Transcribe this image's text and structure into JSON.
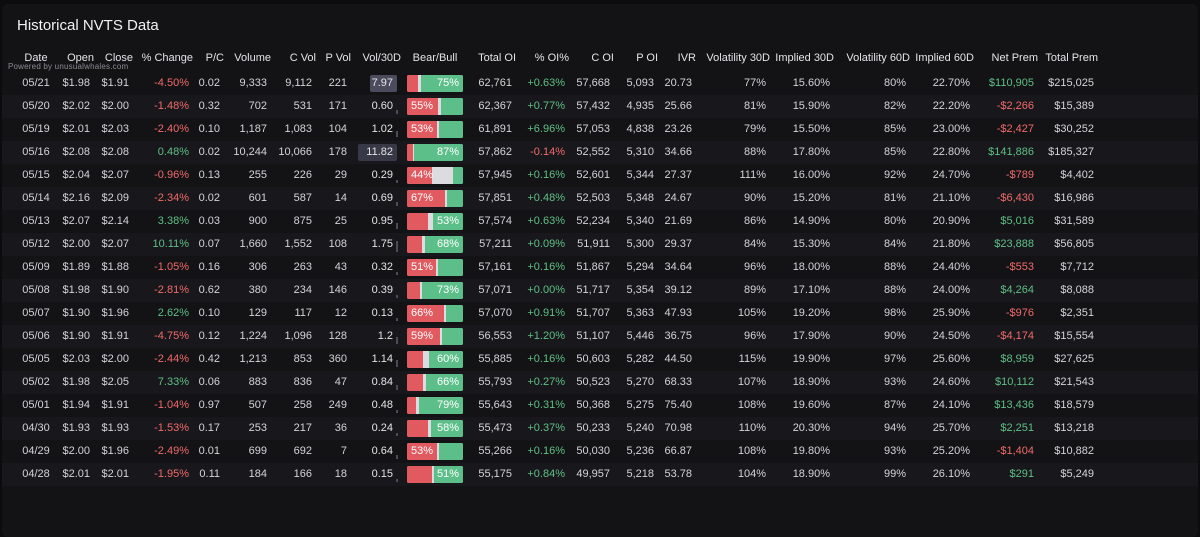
{
  "title": "Historical NVTS Data",
  "powered_by": "Powered by unusualwhales.com",
  "colors": {
    "positive": "#5fbf86",
    "negative": "#f06a6a",
    "bear": "#e05a60",
    "bull": "#5cbf8a",
    "neutral": "#dcdce0"
  },
  "columns": [
    "Date",
    "Open",
    "Close",
    "% Change",
    "P/C",
    "Volume",
    "C Vol",
    "P Vol",
    "Vol/30D",
    "Bear/Bull",
    "Total OI",
    "% OI%",
    "C OI",
    "P OI",
    "IVR",
    "Volatility 30D",
    "Implied 30D",
    "Volatility 60D",
    "Implied 60D",
    "Net Prem",
    "Total Prem"
  ],
  "rows": [
    {
      "date": "05/21",
      "open": "$1.98",
      "close": "$1.91",
      "chg": "-4.50%",
      "pc": "0.02",
      "volume": "9,333",
      "cvol": "9,112",
      "pvol": "221",
      "vol30": "7.97",
      "bear": 0.2,
      "bull": 0.75,
      "bb_label": "75%",
      "bb_side": "bull",
      "total_oi": "62,761",
      "oi_pct": "+0.63%",
      "coi": "57,668",
      "poi": "5,093",
      "ivr": "20.73",
      "vol30d": "77%",
      "impl30": "15.60%",
      "vol60d": "80%",
      "impl60": "22.70%",
      "net_prem": "$110,905",
      "total_prem": "$215,025"
    },
    {
      "date": "05/20",
      "open": "$2.02",
      "close": "$2.00",
      "chg": "-1.48%",
      "pc": "0.32",
      "volume": "702",
      "cvol": "531",
      "pvol": "171",
      "vol30": "0.60",
      "bear": 0.55,
      "bull": 0.4,
      "bb_label": "55%",
      "bb_side": "bear",
      "total_oi": "62,367",
      "oi_pct": "+0.77%",
      "coi": "57,432",
      "poi": "4,935",
      "ivr": "25.66",
      "vol30d": "81%",
      "impl30": "15.90%",
      "vol60d": "82%",
      "impl60": "22.20%",
      "net_prem": "-$2,266",
      "total_prem": "$15,389"
    },
    {
      "date": "05/19",
      "open": "$2.01",
      "close": "$2.03",
      "chg": "-2.40%",
      "pc": "0.10",
      "volume": "1,187",
      "cvol": "1,083",
      "pvol": "104",
      "vol30": "1.02",
      "bear": 0.53,
      "bull": 0.43,
      "bb_label": "53%",
      "bb_side": "bear",
      "total_oi": "61,891",
      "oi_pct": "+6.96%",
      "coi": "57,053",
      "poi": "4,838",
      "ivr": "23.26",
      "vol30d": "79%",
      "impl30": "15.50%",
      "vol60d": "85%",
      "impl60": "23.00%",
      "net_prem": "-$2,427",
      "total_prem": "$30,252"
    },
    {
      "date": "05/16",
      "open": "$2.08",
      "close": "$2.08",
      "chg": "0.48%",
      "pc": "0.02",
      "volume": "10,244",
      "cvol": "10,066",
      "pvol": "178",
      "vol30": "11.82",
      "bear": 0.1,
      "bull": 0.87,
      "bb_label": "87%",
      "bb_side": "bull",
      "total_oi": "57,862",
      "oi_pct": "-0.14%",
      "coi": "52,552",
      "poi": "5,310",
      "ivr": "34.66",
      "vol30d": "88%",
      "impl30": "17.80%",
      "vol60d": "85%",
      "impl60": "22.80%",
      "net_prem": "$141,886",
      "total_prem": "$185,327"
    },
    {
      "date": "05/15",
      "open": "$2.04",
      "close": "$2.07",
      "chg": "-0.96%",
      "pc": "0.13",
      "volume": "255",
      "cvol": "226",
      "pvol": "29",
      "vol30": "0.29",
      "bear": 0.44,
      "bull": 0.18,
      "bb_label": "44%",
      "bb_side": "bear",
      "total_oi": "57,945",
      "oi_pct": "+0.16%",
      "coi": "52,601",
      "poi": "5,344",
      "ivr": "27.37",
      "vol30d": "111%",
      "impl30": "16.00%",
      "vol60d": "92%",
      "impl60": "24.70%",
      "net_prem": "-$789",
      "total_prem": "$4,402"
    },
    {
      "date": "05/14",
      "open": "$2.16",
      "close": "$2.09",
      "chg": "-2.34%",
      "pc": "0.02",
      "volume": "601",
      "cvol": "587",
      "pvol": "14",
      "vol30": "0.69",
      "bear": 0.67,
      "bull": 0.28,
      "bb_label": "67%",
      "bb_side": "bear",
      "total_oi": "57,851",
      "oi_pct": "+0.48%",
      "coi": "52,503",
      "poi": "5,348",
      "ivr": "24.67",
      "vol30d": "90%",
      "impl30": "15.20%",
      "vol60d": "81%",
      "impl60": "21.10%",
      "net_prem": "-$6,430",
      "total_prem": "$16,986"
    },
    {
      "date": "05/13",
      "open": "$2.07",
      "close": "$2.14",
      "chg": "3.38%",
      "pc": "0.03",
      "volume": "900",
      "cvol": "875",
      "pvol": "25",
      "vol30": "0.95",
      "bear": 0.38,
      "bull": 0.53,
      "bb_label": "53%",
      "bb_side": "bull",
      "total_oi": "57,574",
      "oi_pct": "+0.63%",
      "coi": "52,234",
      "poi": "5,340",
      "ivr": "21.69",
      "vol30d": "86%",
      "impl30": "14.90%",
      "vol60d": "80%",
      "impl60": "20.90%",
      "net_prem": "$5,016",
      "total_prem": "$31,589"
    },
    {
      "date": "05/12",
      "open": "$2.00",
      "close": "$2.07",
      "chg": "10.11%",
      "pc": "0.07",
      "volume": "1,660",
      "cvol": "1,552",
      "pvol": "108",
      "vol30": "1.75",
      "bear": 0.27,
      "bull": 0.68,
      "bb_label": "68%",
      "bb_side": "bull",
      "total_oi": "57,211",
      "oi_pct": "+0.09%",
      "coi": "51,911",
      "poi": "5,300",
      "ivr": "29.37",
      "vol30d": "84%",
      "impl30": "15.30%",
      "vol60d": "84%",
      "impl60": "21.80%",
      "net_prem": "$23,888",
      "total_prem": "$56,805"
    },
    {
      "date": "05/09",
      "open": "$1.89",
      "close": "$1.88",
      "chg": "-1.05%",
      "pc": "0.16",
      "volume": "306",
      "cvol": "263",
      "pvol": "43",
      "vol30": "0.32",
      "bear": 0.51,
      "bull": 0.44,
      "bb_label": "51%",
      "bb_side": "bear",
      "total_oi": "57,161",
      "oi_pct": "+0.16%",
      "coi": "51,867",
      "poi": "5,294",
      "ivr": "34.64",
      "vol30d": "96%",
      "impl30": "18.00%",
      "vol60d": "88%",
      "impl60": "24.40%",
      "net_prem": "-$553",
      "total_prem": "$7,712"
    },
    {
      "date": "05/08",
      "open": "$1.98",
      "close": "$1.90",
      "chg": "-2.81%",
      "pc": "0.62",
      "volume": "380",
      "cvol": "234",
      "pvol": "146",
      "vol30": "0.39",
      "bear": 0.23,
      "bull": 0.73,
      "bb_label": "73%",
      "bb_side": "bull",
      "total_oi": "57,071",
      "oi_pct": "+0.00%",
      "coi": "51,717",
      "poi": "5,354",
      "ivr": "39.12",
      "vol30d": "89%",
      "impl30": "17.10%",
      "vol60d": "88%",
      "impl60": "24.00%",
      "net_prem": "$4,264",
      "total_prem": "$8,088"
    },
    {
      "date": "05/07",
      "open": "$1.90",
      "close": "$1.96",
      "chg": "2.62%",
      "pc": "0.10",
      "volume": "129",
      "cvol": "117",
      "pvol": "12",
      "vol30": "0.13",
      "bear": 0.66,
      "bull": 0.3,
      "bb_label": "66%",
      "bb_side": "bear",
      "total_oi": "57,070",
      "oi_pct": "+0.91%",
      "coi": "51,707",
      "poi": "5,363",
      "ivr": "47.93",
      "vol30d": "105%",
      "impl30": "19.20%",
      "vol60d": "98%",
      "impl60": "25.90%",
      "net_prem": "-$976",
      "total_prem": "$2,351"
    },
    {
      "date": "05/06",
      "open": "$1.90",
      "close": "$1.91",
      "chg": "-4.75%",
      "pc": "0.12",
      "volume": "1,224",
      "cvol": "1,096",
      "pvol": "128",
      "vol30": "1.2",
      "bear": 0.59,
      "bull": 0.37,
      "bb_label": "59%",
      "bb_side": "bear",
      "total_oi": "56,553",
      "oi_pct": "+1.20%",
      "coi": "51,107",
      "poi": "5,446",
      "ivr": "36.75",
      "vol30d": "96%",
      "impl30": "17.90%",
      "vol60d": "90%",
      "impl60": "24.50%",
      "net_prem": "-$4,174",
      "total_prem": "$15,554"
    },
    {
      "date": "05/05",
      "open": "$2.03",
      "close": "$2.00",
      "chg": "-2.44%",
      "pc": "0.42",
      "volume": "1,213",
      "cvol": "853",
      "pvol": "360",
      "vol30": "1.14",
      "bear": 0.29,
      "bull": 0.6,
      "bb_label": "60%",
      "bb_side": "bull",
      "total_oi": "55,885",
      "oi_pct": "+0.16%",
      "coi": "50,603",
      "poi": "5,282",
      "ivr": "44.50",
      "vol30d": "115%",
      "impl30": "19.90%",
      "vol60d": "97%",
      "impl60": "25.60%",
      "net_prem": "$8,959",
      "total_prem": "$27,625"
    },
    {
      "date": "05/02",
      "open": "$1.98",
      "close": "$2.05",
      "chg": "7.33%",
      "pc": "0.06",
      "volume": "883",
      "cvol": "836",
      "pvol": "47",
      "vol30": "0.84",
      "bear": 0.28,
      "bull": 0.66,
      "bb_label": "66%",
      "bb_side": "bull",
      "total_oi": "55,793",
      "oi_pct": "+0.27%",
      "coi": "50,523",
      "poi": "5,270",
      "ivr": "68.33",
      "vol30d": "107%",
      "impl30": "18.90%",
      "vol60d": "93%",
      "impl60": "24.60%",
      "net_prem": "$10,112",
      "total_prem": "$21,543"
    },
    {
      "date": "05/01",
      "open": "$1.94",
      "close": "$1.91",
      "chg": "-1.04%",
      "pc": "0.97",
      "volume": "507",
      "cvol": "258",
      "pvol": "249",
      "vol30": "0.48",
      "bear": 0.16,
      "bull": 0.79,
      "bb_label": "79%",
      "bb_side": "bull",
      "total_oi": "55,643",
      "oi_pct": "+0.31%",
      "coi": "50,368",
      "poi": "5,275",
      "ivr": "75.40",
      "vol30d": "108%",
      "impl30": "19.60%",
      "vol60d": "87%",
      "impl60": "24.10%",
      "net_prem": "$13,436",
      "total_prem": "$18,579"
    },
    {
      "date": "04/30",
      "open": "$1.93",
      "close": "$1.93",
      "chg": "-1.53%",
      "pc": "0.17",
      "volume": "253",
      "cvol": "217",
      "pvol": "36",
      "vol30": "0.24",
      "bear": 0.38,
      "bull": 0.58,
      "bb_label": "58%",
      "bb_side": "bull",
      "total_oi": "55,473",
      "oi_pct": "+0.37%",
      "coi": "50,233",
      "poi": "5,240",
      "ivr": "70.98",
      "vol30d": "110%",
      "impl30": "20.30%",
      "vol60d": "94%",
      "impl60": "25.70%",
      "net_prem": "$2,251",
      "total_prem": "$13,218"
    },
    {
      "date": "04/29",
      "open": "$2.00",
      "close": "$1.96",
      "chg": "-2.49%",
      "pc": "0.01",
      "volume": "699",
      "cvol": "692",
      "pvol": "7",
      "vol30": "0.64",
      "bear": 0.53,
      "bull": 0.43,
      "bb_label": "53%",
      "bb_side": "bear",
      "total_oi": "55,266",
      "oi_pct": "+0.16%",
      "coi": "50,030",
      "poi": "5,236",
      "ivr": "66.87",
      "vol30d": "108%",
      "impl30": "19.80%",
      "vol60d": "93%",
      "impl60": "25.20%",
      "net_prem": "-$1,404",
      "total_prem": "$10,882"
    },
    {
      "date": "04/28",
      "open": "$2.01",
      "close": "$2.01",
      "chg": "-1.95%",
      "pc": "0.11",
      "volume": "184",
      "cvol": "166",
      "pvol": "18",
      "vol30": "0.15",
      "bear": 0.45,
      "bull": 0.51,
      "bb_label": "51%",
      "bb_side": "bull",
      "total_oi": "55,175",
      "oi_pct": "+0.84%",
      "coi": "49,957",
      "poi": "5,218",
      "ivr": "53.78",
      "vol30d": "104%",
      "impl30": "18.90%",
      "vol60d": "99%",
      "impl60": "26.10%",
      "net_prem": "$291",
      "total_prem": "$5,249"
    }
  ]
}
